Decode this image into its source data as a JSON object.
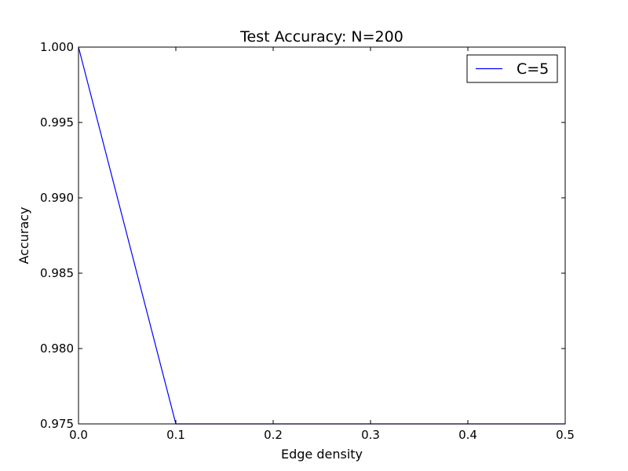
{
  "chart_data": {
    "type": "line",
    "title": "Test Accuracy: N=200",
    "xlabel": "Edge density",
    "ylabel": "Accuracy",
    "xlim": [
      0.0,
      0.5
    ],
    "ylim": [
      0.975,
      1.0
    ],
    "xticks": [
      0.0,
      0.1,
      0.2,
      0.3,
      0.4,
      0.5
    ],
    "xtick_labels": [
      "0.0",
      "0.1",
      "0.2",
      "0.3",
      "0.4",
      "0.5"
    ],
    "yticks": [
      0.975,
      0.98,
      0.985,
      0.99,
      0.995,
      1.0
    ],
    "ytick_labels": [
      "0.975",
      "0.980",
      "0.985",
      "0.990",
      "0.995",
      "1.000"
    ],
    "grid": false,
    "legend_position": "top-right",
    "series": [
      {
        "name": "C=5",
        "color": "#0000ff",
        "x": [
          0.0,
          0.1,
          0.2,
          0.3,
          0.4,
          0.5
        ],
        "y": [
          1.0,
          0.975,
          0.975,
          0.975,
          0.975,
          0.975
        ]
      }
    ]
  }
}
